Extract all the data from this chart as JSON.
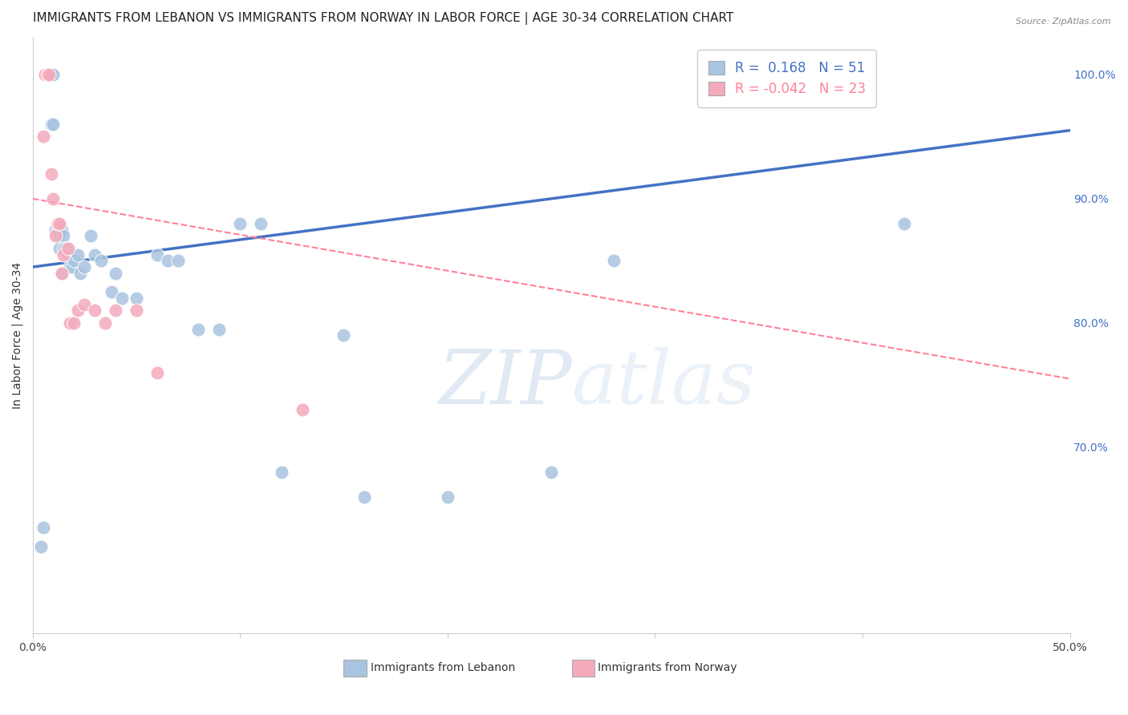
{
  "title": "IMMIGRANTS FROM LEBANON VS IMMIGRANTS FROM NORWAY IN LABOR FORCE | AGE 30-34 CORRELATION CHART",
  "source": "Source: ZipAtlas.com",
  "ylabel": "In Labor Force | Age 30-34",
  "xlim": [
    0.0,
    0.5
  ],
  "ylim": [
    0.55,
    1.03
  ],
  "xticks": [
    0.0,
    0.1,
    0.2,
    0.3,
    0.4,
    0.5
  ],
  "xtick_labels": [
    "0.0%",
    "",
    "",
    "",
    "",
    "50.0%"
  ],
  "yticks_right": [
    0.7,
    0.8,
    0.9,
    1.0
  ],
  "ytick_labels_right": [
    "70.0%",
    "80.0%",
    "90.0%",
    "100.0%"
  ],
  "legend_blue_r": "0.168",
  "legend_blue_n": "51",
  "legend_pink_r": "-0.042",
  "legend_pink_n": "23",
  "legend_label_blue": "Immigrants from Lebanon",
  "legend_label_pink": "Immigrants from Norway",
  "blue_color": "#A8C4E0",
  "pink_color": "#F4AABB",
  "blue_line_color": "#4472C4",
  "pink_line_color": "#FF8099",
  "watermark_color": "#C8D8EC",
  "background_color": "#FFFFFF",
  "blue_x": [
    0.004,
    0.005,
    0.006,
    0.006,
    0.007,
    0.007,
    0.007,
    0.008,
    0.008,
    0.009,
    0.009,
    0.01,
    0.01,
    0.011,
    0.012,
    0.013,
    0.013,
    0.014,
    0.014,
    0.015,
    0.015,
    0.016,
    0.017,
    0.018,
    0.019,
    0.02,
    0.022,
    0.023,
    0.025,
    0.028,
    0.03,
    0.033,
    0.038,
    0.04,
    0.043,
    0.05,
    0.06,
    0.065,
    0.07,
    0.08,
    0.09,
    0.1,
    0.11,
    0.12,
    0.15,
    0.16,
    0.2,
    0.25,
    0.28,
    0.38,
    0.42
  ],
  "blue_y": [
    0.62,
    0.635,
    1.0,
    1.0,
    1.0,
    1.0,
    1.0,
    1.0,
    1.0,
    1.0,
    0.96,
    0.96,
    1.0,
    0.875,
    0.875,
    0.87,
    0.86,
    0.875,
    0.84,
    0.87,
    0.86,
    0.86,
    0.855,
    0.845,
    0.845,
    0.85,
    0.855,
    0.84,
    0.845,
    0.87,
    0.855,
    0.85,
    0.825,
    0.84,
    0.82,
    0.82,
    0.855,
    0.85,
    0.85,
    0.795,
    0.795,
    0.88,
    0.88,
    0.68,
    0.79,
    0.66,
    0.66,
    0.68,
    0.85,
    1.0,
    0.88
  ],
  "pink_x": [
    0.005,
    0.006,
    0.006,
    0.007,
    0.008,
    0.009,
    0.01,
    0.011,
    0.012,
    0.013,
    0.014,
    0.015,
    0.017,
    0.018,
    0.02,
    0.022,
    0.025,
    0.03,
    0.035,
    0.04,
    0.05,
    0.06,
    0.13
  ],
  "pink_y": [
    0.95,
    1.0,
    1.0,
    1.0,
    1.0,
    0.92,
    0.9,
    0.87,
    0.88,
    0.88,
    0.84,
    0.855,
    0.86,
    0.8,
    0.8,
    0.81,
    0.815,
    0.81,
    0.8,
    0.81,
    0.81,
    0.76,
    0.73
  ],
  "blue_trend_x": [
    0.0,
    0.5
  ],
  "blue_trend_y": [
    0.845,
    0.955
  ],
  "pink_trend_x": [
    0.0,
    0.5
  ],
  "pink_trend_y": [
    0.9,
    0.755
  ],
  "grid_color": "#DDDDDD",
  "title_fontsize": 11,
  "axis_label_fontsize": 10,
  "tick_fontsize": 10,
  "legend_fontsize": 12
}
